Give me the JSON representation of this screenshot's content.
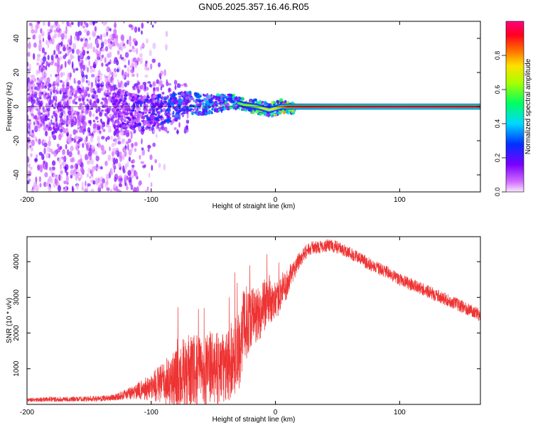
{
  "figure_title": "GN05.2025.357.16.46.R05",
  "chart_data": [
    {
      "type": "heatmap",
      "title": "GN05.2025.357.16.46.R05",
      "xlabel": "Height of straight line (km)",
      "ylabel": "Frequency (Hz)",
      "xlim": [
        -200,
        165
      ],
      "ylim": [
        -50,
        50
      ],
      "xticks": [
        -200,
        -100,
        0,
        100
      ],
      "yticks": [
        -40,
        -20,
        0,
        20,
        40
      ],
      "ridge": {
        "x": [
          -125,
          -115,
          -105,
          -95,
          -85,
          -75,
          -65,
          -55,
          -45,
          -35,
          -25,
          -15,
          -5,
          0,
          5,
          10,
          50,
          100,
          165
        ],
        "y": [
          -2,
          -3,
          -4,
          -2,
          -1,
          1,
          2,
          1,
          2,
          3,
          1,
          0,
          -2,
          -1,
          0,
          0,
          0,
          0,
          0
        ],
        "amplitude": [
          0.2,
          0.25,
          0.3,
          0.3,
          0.35,
          0.4,
          0.45,
          0.45,
          0.5,
          0.55,
          0.6,
          0.65,
          0.7,
          0.75,
          0.8,
          0.9,
          0.95,
          0.97,
          0.95
        ]
      },
      "noise_region_x": [
        -200,
        -100
      ],
      "colorbar": {
        "label": "Normalized spectral amplitude",
        "range": [
          0,
          1
        ],
        "ticks": [
          0.0,
          0.2,
          0.4,
          0.6,
          0.8
        ],
        "tick_labels": [
          "0.0",
          "0.2",
          "0.4",
          "0.6",
          "0.8"
        ]
      }
    },
    {
      "type": "line",
      "xlabel": "Height of straight line (km)",
      "ylabel": "SNR (10 * v/v)",
      "xlim": [
        -200,
        165
      ],
      "ylim": [
        0,
        4700
      ],
      "xticks": [
        -200,
        -100,
        0,
        100
      ],
      "yticks": [
        1000,
        2000,
        3000,
        4000
      ],
      "color": "#ee3333",
      "series": [
        {
          "name": "SNR",
          "x": [
            -200,
            -180,
            -160,
            -140,
            -130,
            -120,
            -110,
            -100,
            -90,
            -80,
            -70,
            -60,
            -50,
            -40,
            -30,
            -25,
            -20,
            -15,
            -10,
            -5,
            0,
            5,
            10,
            15,
            20,
            25,
            30,
            35,
            40,
            45,
            50,
            60,
            70,
            80,
            90,
            100,
            110,
            120,
            130,
            140,
            150,
            160,
            165
          ],
          "y": [
            130,
            140,
            150,
            160,
            200,
            280,
            380,
            500,
            600,
            750,
            850,
            950,
            1000,
            1000,
            1500,
            2200,
            2500,
            2500,
            2700,
            2900,
            2800,
            3200,
            3400,
            3800,
            4100,
            4300,
            4400,
            4400,
            4450,
            4450,
            4400,
            4250,
            4050,
            3850,
            3700,
            3500,
            3350,
            3200,
            3050,
            2900,
            2750,
            2600,
            2500
          ],
          "spread": [
            60,
            70,
            70,
            80,
            90,
            150,
            250,
            400,
            600,
            900,
            1100,
            1000,
            1000,
            1000,
            1200,
            1100,
            900,
            800,
            800,
            600,
            500,
            500,
            400,
            300,
            250,
            200,
            180,
            180,
            180,
            180,
            180,
            180,
            180,
            180,
            180,
            180,
            180,
            180,
            180,
            180,
            180,
            180,
            180
          ]
        }
      ]
    }
  ]
}
